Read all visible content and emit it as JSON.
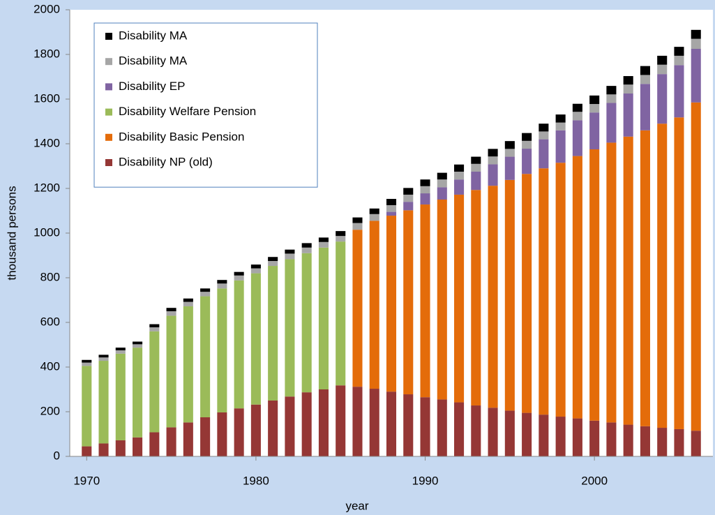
{
  "chart_data": {
    "type": "stacked-bar",
    "x_label": "year",
    "y_label": "thousand persons",
    "x": [
      1970,
      1971,
      1972,
      1973,
      1974,
      1975,
      1976,
      1977,
      1978,
      1979,
      1980,
      1981,
      1982,
      1983,
      1984,
      1985,
      1986,
      1987,
      1988,
      1989,
      1990,
      1991,
      1992,
      1993,
      1994,
      1995,
      1996,
      1997,
      1998,
      1999,
      2000,
      2001,
      2002,
      2003,
      2004,
      2005,
      2006
    ],
    "xlim": [
      1969,
      2007
    ],
    "xticks": [
      1970,
      1980,
      1990,
      2000
    ],
    "ylim": [
      0,
      2000
    ],
    "yticks": [
      0,
      200,
      400,
      600,
      800,
      1000,
      1200,
      1400,
      1600,
      1800,
      2000
    ],
    "legend": "top-left",
    "series": [
      {
        "name": "Disability NP (old)",
        "color": "#953735",
        "values": [
          45,
          58,
          72,
          85,
          108,
          130,
          152,
          175,
          197,
          215,
          232,
          250,
          268,
          287,
          300,
          318,
          312,
          303,
          290,
          278,
          265,
          255,
          242,
          228,
          218,
          205,
          195,
          187,
          178,
          170,
          160,
          152,
          142,
          135,
          128,
          122,
          115
        ]
      },
      {
        "name": "Disability Basic Pension",
        "color": "#e46c0a",
        "values": [
          null,
          null,
          null,
          null,
          null,
          null,
          null,
          null,
          null,
          null,
          null,
          null,
          null,
          null,
          null,
          null,
          703,
          752,
          788,
          824,
          863,
          895,
          930,
          965,
          994,
          1033,
          1070,
          1103,
          1137,
          1175,
          1215,
          1253,
          1290,
          1325,
          1362,
          1396,
          1470
        ]
      },
      {
        "name": "Disability Welfare Pension",
        "color": "#9bbb59",
        "values": [
          360,
          370,
          388,
          402,
          452,
          500,
          520,
          542,
          555,
          573,
          588,
          603,
          615,
          623,
          635,
          644,
          null,
          null,
          null,
          null,
          null,
          null,
          null,
          null,
          null,
          null,
          null,
          null,
          null,
          null,
          null,
          null,
          null,
          null,
          null,
          null,
          null
        ]
      },
      {
        "name": "Disability EP",
        "color": "#8064a2",
        "values": [
          null,
          null,
          null,
          null,
          null,
          null,
          null,
          null,
          null,
          null,
          null,
          null,
          null,
          null,
          null,
          null,
          null,
          null,
          17,
          38,
          50,
          55,
          68,
          82,
          96,
          104,
          113,
          130,
          145,
          160,
          165,
          178,
          193,
          208,
          222,
          234,
          240
        ]
      },
      {
        "name": "Disability MA",
        "color": "#a6a6a6",
        "values": [
          15,
          15,
          15,
          15,
          18,
          20,
          20,
          20,
          22,
          22,
          22,
          22,
          25,
          25,
          25,
          25,
          30,
          30,
          30,
          32,
          32,
          35,
          35,
          35,
          35,
          35,
          35,
          35,
          35,
          38,
          38,
          38,
          40,
          40,
          42,
          42,
          45
        ]
      },
      {
        "name": "Disability MA",
        "color": "#000000",
        "values": [
          12,
          12,
          12,
          12,
          14,
          15,
          15,
          15,
          16,
          16,
          17,
          18,
          18,
          20,
          20,
          22,
          25,
          25,
          28,
          30,
          30,
          30,
          32,
          32,
          34,
          35,
          35,
          35,
          36,
          36,
          38,
          38,
          38,
          40,
          40,
          40,
          40
        ]
      }
    ]
  }
}
